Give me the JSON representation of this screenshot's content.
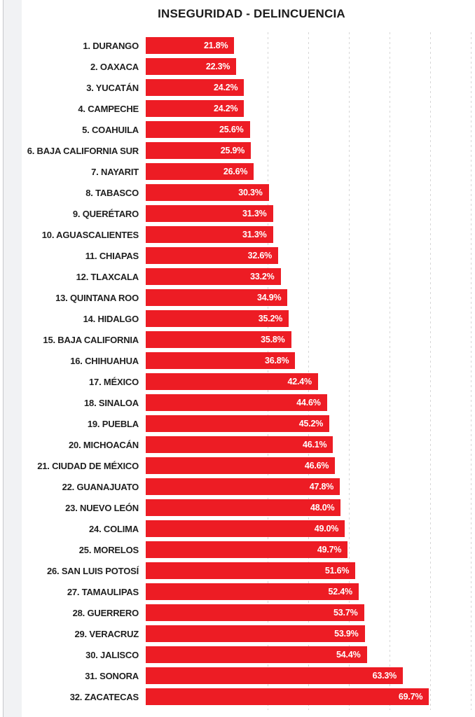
{
  "chart": {
    "title": "INSEGURIDAD - DELINCUENCIA",
    "bar_color": "#ed1c24",
    "gridline_color": "#d6d6d6"
  },
  "chart_data": {
    "type": "bar",
    "orientation": "horizontal",
    "title": "INSEGURIDAD - DELINCUENCIA",
    "categories": [
      "1. DURANGO",
      "2. OAXACA",
      "3. YUCATÁN",
      "4. CAMPECHE",
      "5. COAHUILA",
      "6. BAJA CALIFORNIA SUR",
      "7. NAYARIT",
      "8. TABASCO",
      "9. QUERÉTARO",
      "10. AGUASCALIENTES",
      "11. CHIAPAS",
      "12. TLAXCALA",
      "13. QUINTANA ROO",
      "14. HIDALGO",
      "15. BAJA CALIFORNIA",
      "16. CHIHUAHUA",
      "17. MÉXICO",
      "18. SINALOA",
      "19. PUEBLA",
      "20. MICHOACÁN",
      "21. CIUDAD DE MÉXICO",
      "22. GUANAJUATO",
      "23. NUEVO LEÓN",
      "24. COLIMA",
      "25. MORELOS",
      "26. SAN LUIS POTOSÍ",
      "27. TAMAULIPAS",
      "28. GUERRERO",
      "29. VERACRUZ",
      "30. JALISCO",
      "31. SONORA",
      "32. ZACATECAS"
    ],
    "values": [
      21.8,
      22.3,
      24.2,
      24.2,
      25.6,
      25.9,
      26.6,
      30.3,
      31.3,
      31.3,
      32.6,
      33.2,
      34.9,
      35.2,
      35.8,
      36.8,
      42.4,
      44.6,
      45.2,
      46.1,
      46.6,
      47.8,
      48.0,
      49.0,
      49.7,
      51.6,
      52.4,
      53.7,
      53.9,
      54.4,
      63.3,
      69.7
    ],
    "value_labels": [
      "21.8%",
      "22.3%",
      "24.2%",
      "24.2%",
      "25.6%",
      "25.9%",
      "26.6%",
      "30.3%",
      "31.3%",
      "31.3%",
      "32.6%",
      "33.2%",
      "34.9%",
      "35.2%",
      "35.8%",
      "36.8%",
      "42.4%",
      "44.6%",
      "45.2%",
      "46.1%",
      "46.6%",
      "47.8%",
      "48.0%",
      "49.0%",
      "49.7%",
      "51.6%",
      "52.4%",
      "53.7%",
      "53.9%",
      "54.4%",
      "63.3%",
      "69.7%"
    ],
    "xlabel": "",
    "ylabel": "",
    "xlim": [
      0,
      80
    ],
    "gridlines_percent": [
      30,
      40,
      50,
      60,
      70,
      80
    ],
    "grid": "vertical-dashed",
    "legend": "none",
    "bar_color": "#ed1c24",
    "value_label_position": "inside-right",
    "value_label_color": "#ffffff"
  }
}
